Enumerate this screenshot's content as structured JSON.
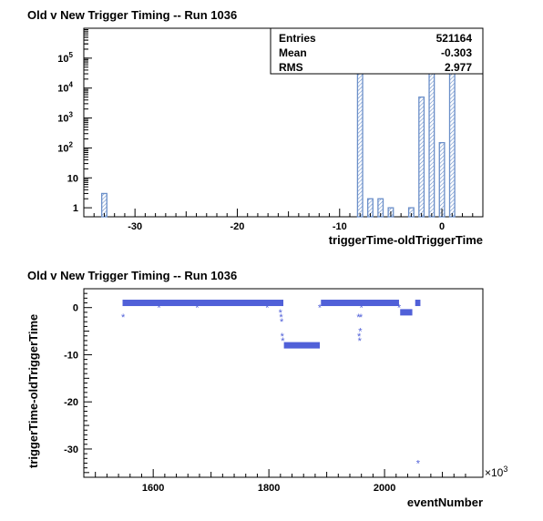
{
  "chart_data": [
    {
      "type": "bar",
      "title": "Old v New Trigger Timing -- Run 1036",
      "xlabel": "triggerTime-oldTriggerTime",
      "ylabel": "",
      "xlim": [
        -35,
        4
      ],
      "ylim": [
        0.5,
        1000000
      ],
      "yscale": "log",
      "bar_color": "#6b8fc9",
      "x_ticks": [
        -30,
        -20,
        -10,
        0
      ],
      "y_tick_labels": [
        {
          "base": "1",
          "exp": ""
        },
        {
          "base": "10",
          "exp": ""
        },
        {
          "base": "10",
          "exp": "2"
        },
        {
          "base": "10",
          "exp": "3"
        },
        {
          "base": "10",
          "exp": "4"
        },
        {
          "base": "10",
          "exp": "5"
        }
      ],
      "bars": [
        {
          "x": -33,
          "value": 3
        },
        {
          "x": -8,
          "value": 70000
        },
        {
          "x": -7,
          "value": 2
        },
        {
          "x": -6,
          "value": 2
        },
        {
          "x": -5,
          "value": 1
        },
        {
          "x": -3,
          "value": 1
        },
        {
          "x": -2,
          "value": 5000
        },
        {
          "x": -1,
          "value": 40000
        },
        {
          "x": 0,
          "value": 150
        },
        {
          "x": 1,
          "value": 400000
        }
      ],
      "stats": [
        {
          "label": "Entries",
          "value": "521164"
        },
        {
          "label": "Mean",
          "value": "-0.303"
        },
        {
          "label": "RMS",
          "value": "2.977"
        }
      ]
    },
    {
      "type": "scatter",
      "title": "Old v New Trigger Timing -- Run 1036",
      "xlabel": "eventNumber",
      "ylabel": "triggerTime-oldTriggerTime",
      "x_exponent_base": "×10",
      "x_exponent": "3",
      "xlim": [
        1480,
        2170
      ],
      "ylim": [
        -36,
        4
      ],
      "marker_color": "#5060d8",
      "x_ticks": [
        1600,
        1800,
        2000
      ],
      "y_ticks": [
        0,
        -10,
        -20,
        -30
      ],
      "segments": [
        {
          "x0": 1547,
          "x1": 1825,
          "y": 1
        },
        {
          "x0": 1826,
          "x1": 1888,
          "y": -8
        },
        {
          "x0": 1890,
          "x1": 2025,
          "y": 1
        },
        {
          "x0": 2027,
          "x1": 2048,
          "y": -1
        },
        {
          "x0": 2053,
          "x1": 2062,
          "y": 1
        }
      ],
      "points": [
        {
          "x": 1548,
          "y": -2
        },
        {
          "x": 1610,
          "y": 0
        },
        {
          "x": 1676,
          "y": 0
        },
        {
          "x": 1797,
          "y": 0
        },
        {
          "x": 1820,
          "y": -1
        },
        {
          "x": 1821,
          "y": -2
        },
        {
          "x": 1822,
          "y": -3
        },
        {
          "x": 1823,
          "y": -6
        },
        {
          "x": 1824,
          "y": -7
        },
        {
          "x": 1888,
          "y": 0
        },
        {
          "x": 1955,
          "y": -2
        },
        {
          "x": 1956,
          "y": -6
        },
        {
          "x": 1957,
          "y": -7
        },
        {
          "x": 1958,
          "y": -5
        },
        {
          "x": 1959,
          "y": -2
        },
        {
          "x": 1960,
          "y": 0
        },
        {
          "x": 2025,
          "y": 0
        },
        {
          "x": 2058,
          "y": -33
        }
      ]
    }
  ]
}
